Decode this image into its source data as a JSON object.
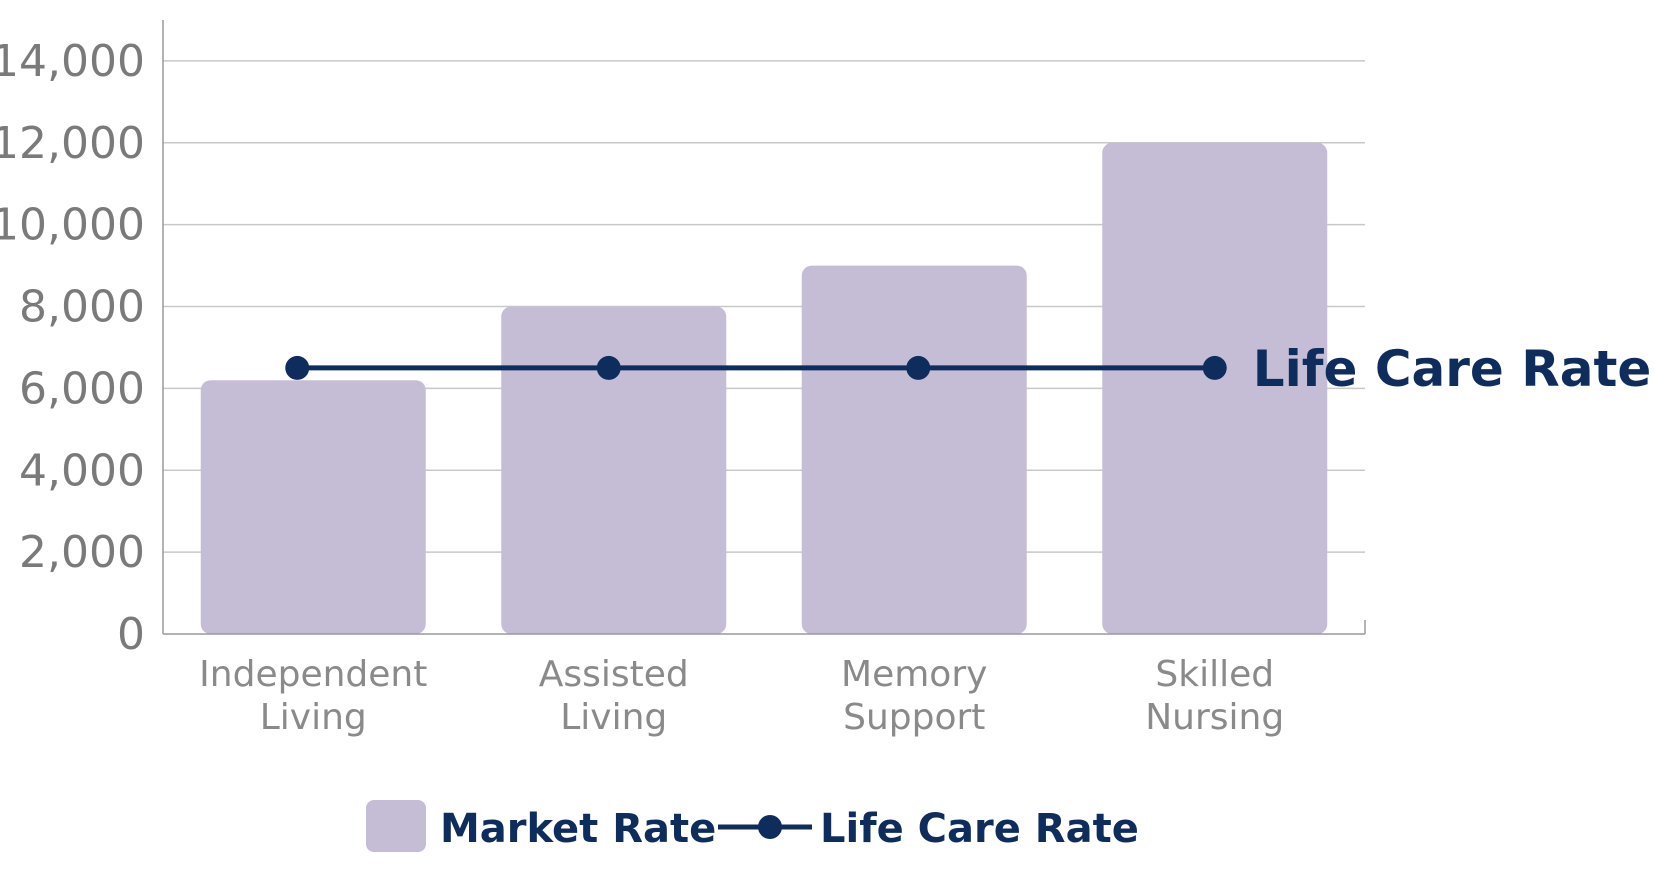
{
  "chart_data": {
    "type": "bar",
    "categories": [
      [
        "Independent",
        "Living"
      ],
      [
        "Assisted",
        "Living"
      ],
      [
        "Memory",
        "Support"
      ],
      [
        "Skilled",
        "Nursing"
      ]
    ],
    "series": [
      {
        "name": "Market Rate",
        "type": "bar",
        "values": [
          6200,
          8000,
          9000,
          12000
        ]
      },
      {
        "name": "Life Care Rate",
        "type": "line",
        "values": [
          6500,
          6500,
          6500,
          6500
        ]
      }
    ],
    "end_label": "Life Care Rate",
    "ylim": [
      0,
      15000
    ],
    "yticks": [
      "0",
      "2,000",
      "4,000",
      "6,000",
      "8,000",
      "10,000",
      "12,000",
      "14,000"
    ],
    "ytick_values": [
      0,
      2000,
      4000,
      6000,
      8000,
      10000,
      12000,
      14000
    ],
    "grid": true,
    "legend_position": "bottom",
    "colors": {
      "bar": "#c5bdd6",
      "line": "#0f2d5c",
      "grid": "#c8c8c8",
      "axis": "#9a9a9a"
    }
  }
}
